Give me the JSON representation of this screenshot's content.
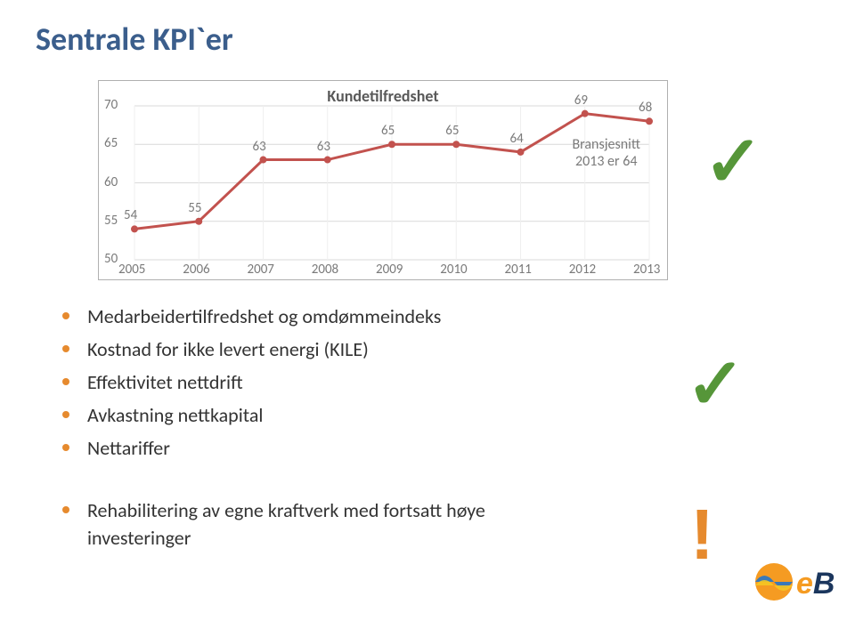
{
  "title": {
    "text": "Sentrale KPI`er",
    "color": "#3b5e8c",
    "fontsize": 36
  },
  "chart": {
    "type": "line",
    "title": "Kundetilfredshet",
    "title_fontsize": 18,
    "title_color": "#595959",
    "border_color": "#b0b0b0",
    "background_color": "#ffffff",
    "grid_color": "#d9d9d9",
    "line_color": "#c2524e",
    "line_width": 3,
    "marker_color": "#c2524e",
    "marker_radius": 4,
    "categories": [
      "2005",
      "2006",
      "2007",
      "2008",
      "2009",
      "2010",
      "2011",
      "2012",
      "2013"
    ],
    "values": [
      54,
      55,
      63,
      63,
      65,
      65,
      64,
      69,
      68
    ],
    "value_label_color": "#7a7a7a",
    "value_label_fontsize": 15,
    "ylim": [
      50,
      70
    ],
    "ytick_step": 5,
    "yticks": [
      50,
      55,
      60,
      65,
      70
    ],
    "xlabel_color": "#7a7a7a",
    "xlabel_fontsize": 15,
    "annotation": {
      "line1": "Bransjesnitt",
      "line2": "2013 er 64",
      "color": "#7a7a7a",
      "fontsize": 16
    }
  },
  "check1": {
    "glyph": "✓",
    "color": "#569639"
  },
  "check2": {
    "glyph": "✓",
    "color": "#569639"
  },
  "exclaim": {
    "glyph": "!",
    "color": "#e68a2e"
  },
  "bullets_group1": [
    "Medarbeidertilfredshet og omdømmeindeks",
    "Kostnad for ikke levert energi (KILE)",
    "Effektivitet nettdrift",
    "Avkastning nettkapital",
    "Nettariffer"
  ],
  "bullets_group2": {
    "line1": "Rehabilitering av egne kraftverk med fortsatt høye",
    "line2": "investeringer"
  },
  "bullet_marker_color": "#e68a2e",
  "bullet_text_color": "#333333",
  "bullet_fontsize": 22,
  "logo": {
    "text": "eB",
    "orange": "#f59b22",
    "navy": "#1b365d",
    "wave_top": "#3a79b8",
    "wave_bot": "#f5a623"
  }
}
